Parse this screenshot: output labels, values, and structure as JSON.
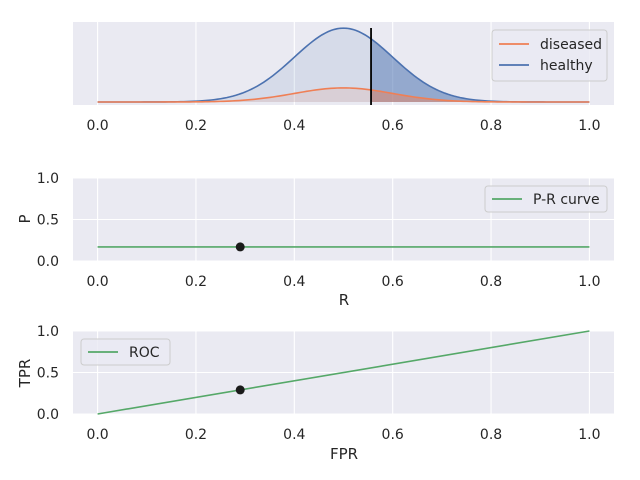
{
  "colors": {
    "background": "#eaeaf2",
    "grid": "#ffffff",
    "healthy": "#4c72b0",
    "diseased": "#ef7f55",
    "curve": "#55a868",
    "marker": "#1a1a1a",
    "threshold": "#000000"
  },
  "chart_data": [
    {
      "type": "area",
      "id": "distributions",
      "title": "",
      "xlabel": "",
      "ylabel": "",
      "xlim": [
        -0.05,
        1.05
      ],
      "ylim": [
        0,
        1
      ],
      "xticks": [
        "0.0",
        "0.2",
        "0.4",
        "0.6",
        "0.8",
        "1.0"
      ],
      "yticks": [],
      "threshold": 0.556,
      "series": [
        {
          "name": "diseased",
          "mean": 0.5,
          "sd": 0.1,
          "peak": 0.17
        },
        {
          "name": "healthy",
          "mean": 0.5,
          "sd": 0.1,
          "peak": 0.89
        }
      ],
      "legend": {
        "position": "top-right",
        "entries": [
          "diseased",
          "healthy"
        ]
      }
    },
    {
      "type": "line",
      "id": "pr",
      "xlabel": "R",
      "ylabel": "P",
      "xlim": [
        -0.05,
        1.05
      ],
      "ylim": [
        0,
        1
      ],
      "xticks": [
        "0.0",
        "0.2",
        "0.4",
        "0.6",
        "0.8",
        "1.0"
      ],
      "yticks": [
        "0.0",
        "0.5",
        "1.0"
      ],
      "series": [
        {
          "name": "P-R curve",
          "x": [
            0,
            1
          ],
          "y": [
            0.17,
            0.17
          ]
        }
      ],
      "point": {
        "x": 0.29,
        "y": 0.17
      },
      "legend": {
        "position": "top-right",
        "entries": [
          "P-R curve"
        ]
      }
    },
    {
      "type": "line",
      "id": "roc",
      "xlabel": "FPR",
      "ylabel": "TPR",
      "xlim": [
        -0.05,
        1.05
      ],
      "ylim": [
        0,
        1
      ],
      "xticks": [
        "0.0",
        "0.2",
        "0.4",
        "0.6",
        "0.8",
        "1.0"
      ],
      "yticks": [
        "0.0",
        "0.5",
        "1.0"
      ],
      "series": [
        {
          "name": "ROC",
          "x": [
            0,
            1
          ],
          "y": [
            0,
            1
          ]
        }
      ],
      "point": {
        "x": 0.29,
        "y": 0.29
      },
      "legend": {
        "position": "top-left",
        "entries": [
          "ROC"
        ]
      }
    }
  ]
}
